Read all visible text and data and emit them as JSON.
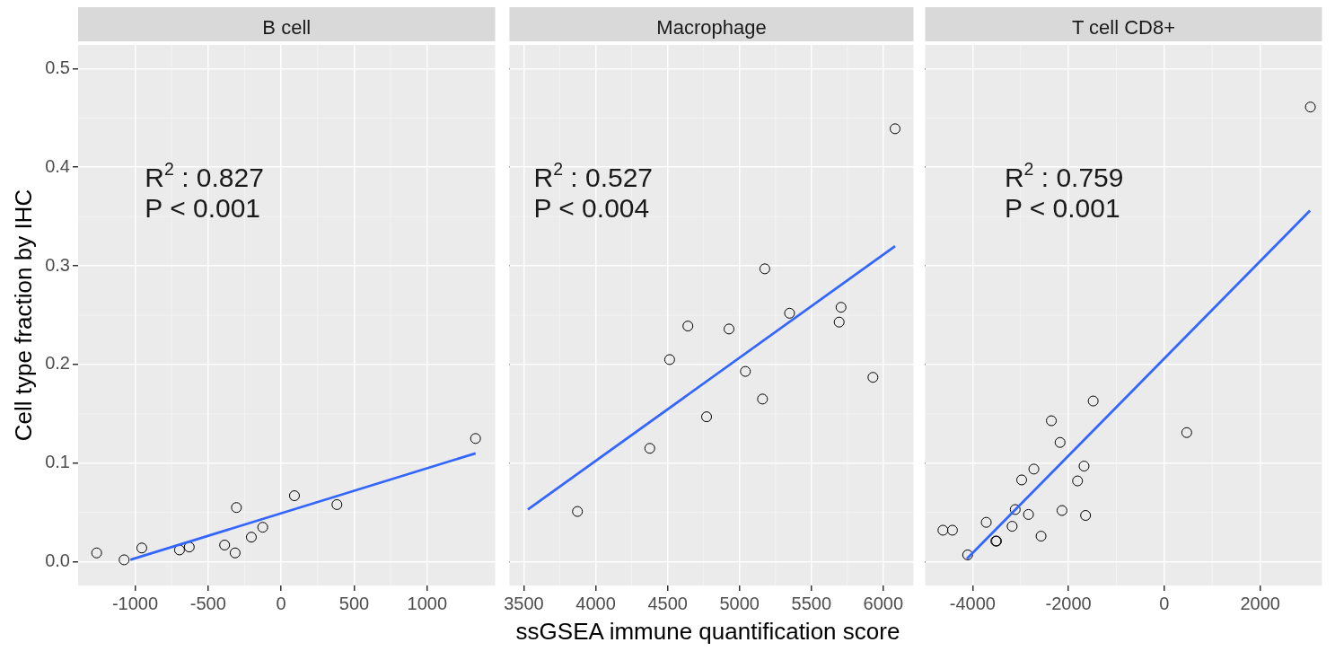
{
  "chart_data": [
    {
      "type": "scatter",
      "title": "B cell",
      "ylabel": "Cell type fraction by IHC",
      "xlim": [
        -1390,
        1465
      ],
      "xticks": [
        -1000,
        -500,
        0,
        500,
        1000
      ],
      "ylim": [
        -0.024,
        0.524
      ],
      "yticks": [
        {
          "value": 0,
          "label": "0.0"
        },
        {
          "value": 0.1,
          "label": "0.1"
        },
        {
          "value": 0.2,
          "label": "0.2"
        },
        {
          "value": 0.3,
          "label": "0.3"
        },
        {
          "value": 0.4,
          "label": "0.4"
        },
        {
          "value": 0.5,
          "label": "0.5"
        }
      ],
      "grid": true,
      "marker": "circle",
      "annotations": [
        "R$^{2}$ : 0.827",
        "P < 0.001"
      ],
      "series": [
        {
          "type": "scatter",
          "color": "#000000",
          "x": [
            -1263,
            -1075,
            -954,
            -696,
            -629,
            -387,
            -315,
            -306,
            -204,
            -126,
            91,
            382,
            1331
          ],
          "values": [
            0.009,
            0.002,
            0.014,
            0.012,
            0.015,
            0.017,
            0.009,
            0.055,
            0.025,
            0.035,
            0.067,
            0.058,
            0.125
          ]
        },
        {
          "type": "line",
          "color": "#3366ff",
          "marker": "none",
          "x": [
            -1032,
            1331
          ],
          "values": [
            0.002,
            0.11
          ]
        }
      ]
    },
    {
      "type": "scatter",
      "title": "Macrophage",
      "xlabel": "ssGSEA immune quantification score",
      "xlim": [
        3400,
        6210
      ],
      "xticks": [
        3500,
        4000,
        4500,
        5000,
        5500,
        6000
      ],
      "ylim": [
        -0.024,
        0.524
      ],
      "yticks": [
        0,
        0.1,
        0.2,
        0.3,
        0.4,
        0.5
      ],
      "tick_labels": "x",
      "grid": true,
      "marker": "circle",
      "annotations": [
        "R$^{2}$ : 0.527",
        "P < 0.004"
      ],
      "series": [
        {
          "type": "scatter",
          "color": "#000000",
          "x": [
            3873,
            4376,
            4514,
            4641,
            4771,
            4927,
            5041,
            5160,
            5176,
            5348,
            5693,
            5706,
            5928,
            6082
          ],
          "values": [
            0.051,
            0.115,
            0.205,
            0.239,
            0.147,
            0.236,
            0.193,
            0.165,
            0.297,
            0.252,
            0.243,
            0.258,
            0.187,
            0.439
          ]
        },
        {
          "type": "line",
          "color": "#3366ff",
          "marker": "none",
          "x": [
            3528,
            6082
          ],
          "values": [
            0.053,
            0.32
          ]
        }
      ]
    },
    {
      "type": "scatter",
      "title": "T cell CD8+",
      "xlim": [
        -4990,
        3290
      ],
      "xticks": [
        -4000,
        -2000,
        0,
        2000
      ],
      "ylim": [
        -0.024,
        0.524
      ],
      "yticks": [
        0,
        0.1,
        0.2,
        0.3,
        0.4,
        0.5
      ],
      "tick_labels": "x",
      "grid": true,
      "marker": "circle",
      "annotations": [
        "R$^{2}$ : 0.759",
        "P < 0.001"
      ],
      "series": [
        {
          "type": "scatter",
          "color": "#000000",
          "x": [
            -4619,
            -4421,
            -4103,
            -3715,
            -3516,
            -3500,
            -3175,
            -3111,
            -2976,
            -2834,
            -2722,
            -2572,
            -2357,
            -2175,
            -2135,
            -1810,
            -1675,
            -1643,
            -1484,
            468,
            3048
          ],
          "values": [
            0.032,
            0.032,
            0.007,
            0.04,
            0.021,
            0.021,
            0.036,
            0.053,
            0.083,
            0.048,
            0.094,
            0.026,
            0.143,
            0.121,
            0.052,
            0.082,
            0.097,
            0.047,
            0.163,
            0.131,
            0.461
          ]
        },
        {
          "type": "line",
          "color": "#3366ff",
          "marker": "none",
          "x": [
            -4119,
            3040
          ],
          "values": [
            0.003,
            0.356
          ]
        }
      ]
    }
  ]
}
